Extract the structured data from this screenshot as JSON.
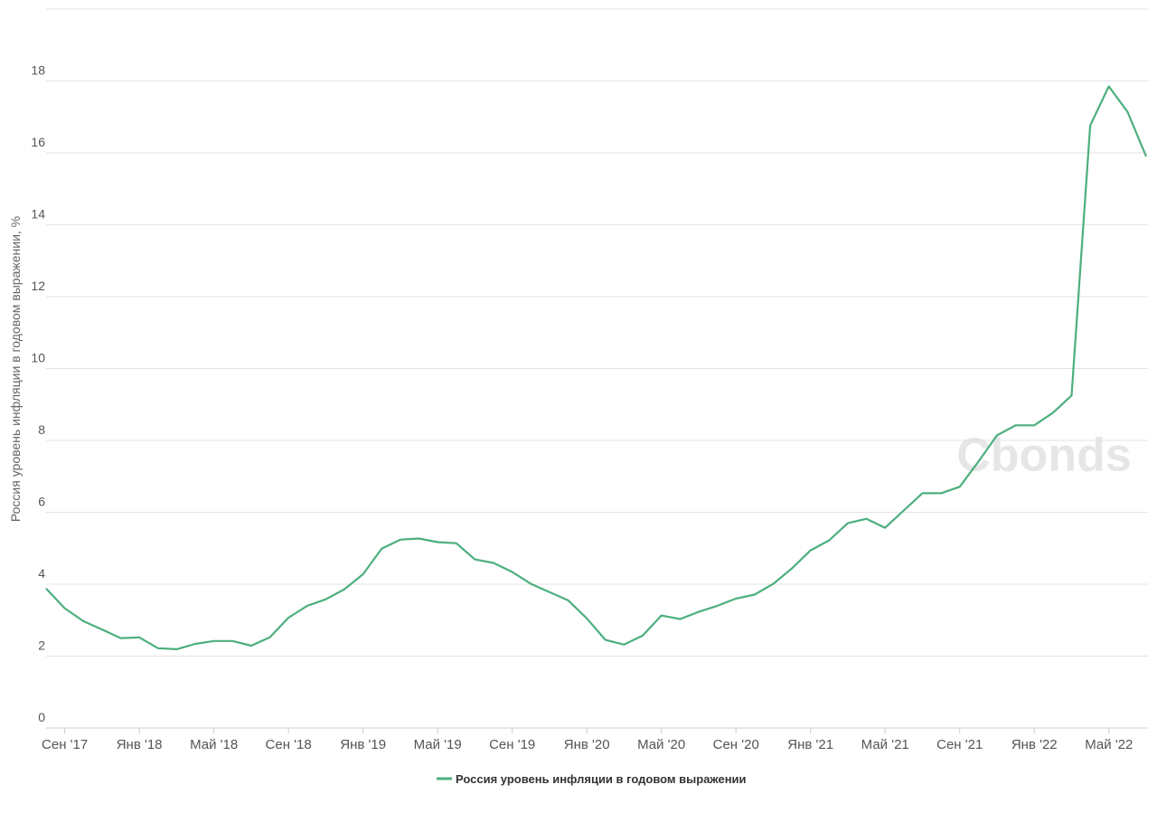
{
  "chart_data": {
    "type": "line",
    "y_label": "Россия уровень инфляции в годовом выражении, %",
    "watermark": "Cbonds",
    "categories": [
      null,
      "Сен '17",
      null,
      null,
      null,
      "Янв '18",
      null,
      null,
      null,
      "Май '18",
      null,
      null,
      null,
      "Сен '18",
      null,
      null,
      null,
      "Янв '19",
      null,
      null,
      null,
      "Май '19",
      null,
      null,
      null,
      "Сен '19",
      null,
      null,
      null,
      "Янв '20",
      null,
      null,
      null,
      "Май '20",
      null,
      null,
      null,
      "Сен '20",
      null,
      null,
      null,
      "Янв '21",
      null,
      null,
      null,
      "Май '21",
      null,
      null,
      null,
      "Сен '21",
      null,
      null,
      null,
      "Янв '22",
      null,
      null,
      null,
      "Май '22",
      null,
      null
    ],
    "series": [
      {
        "name": "Россия уровень инфляции в годовом выражении",
        "color": "#4caf7d",
        "values": [
          3.88,
          3.33,
          2.97,
          2.74,
          2.5,
          2.52,
          2.22,
          2.19,
          2.34,
          2.42,
          2.42,
          2.29,
          2.52,
          3.07,
          3.4,
          3.58,
          3.86,
          4.28,
          4.99,
          5.24,
          5.27,
          5.17,
          5.14,
          4.69,
          4.59,
          4.34,
          4.01,
          3.78,
          3.55,
          3.05,
          2.45,
          2.32,
          2.57,
          3.13,
          3.03,
          3.23,
          3.4,
          3.6,
          3.71,
          4.01,
          4.44,
          4.94,
          5.22,
          5.7,
          5.82,
          5.57,
          6.05,
          6.53,
          6.53,
          6.71,
          7.41,
          8.14,
          8.42,
          8.42,
          8.77,
          9.25,
          16.76,
          17.85,
          17.14,
          15.9
        ]
      }
    ],
    "ylim": [
      0,
      20
    ],
    "yticks": [
      0,
      2,
      4,
      6,
      8,
      10,
      12,
      14,
      16,
      18
    ],
    "grid": true
  }
}
